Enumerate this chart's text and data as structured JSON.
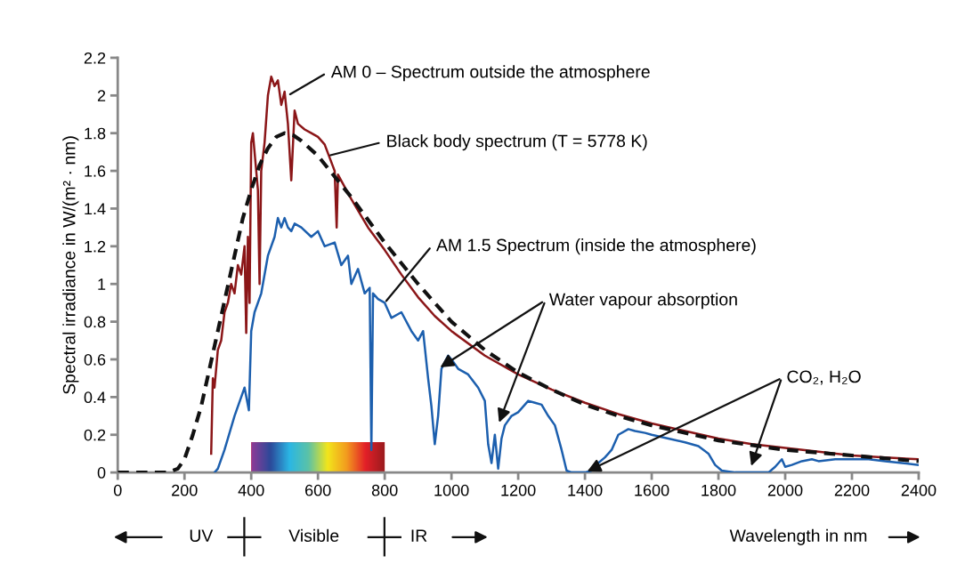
{
  "chart_data": {
    "type": "line",
    "xlabel": "Wavelength in nm",
    "ylabel": "Spectral irradiance in W/(m² · nm)",
    "xlim": [
      0,
      2400
    ],
    "ylim": [
      0,
      2.2
    ],
    "xticks": [
      0,
      200,
      400,
      600,
      800,
      1000,
      1200,
      1400,
      1600,
      1800,
      2000,
      2200,
      2400
    ],
    "yticks": [
      0,
      0.2,
      0.4,
      0.6,
      0.8,
      1,
      1.2,
      1.4,
      1.6,
      1.8,
      2,
      2.2
    ],
    "grid": false,
    "legend": false,
    "series": [
      {
        "color": "#1c5fae",
        "line_style": "solid",
        "x": [
          290,
          300,
          320,
          350,
          370,
          380,
          393,
          400,
          410,
          430,
          450,
          470,
          480,
          490,
          500,
          510,
          520,
          530,
          550,
          580,
          600,
          620,
          650,
          670,
          690,
          700,
          720,
          740,
          755,
          760,
          765,
          780,
          800,
          820,
          850,
          880,
          900,
          915,
          930,
          940,
          950,
          960,
          970,
          990,
          1000,
          1020,
          1050,
          1080,
          1100,
          1110,
          1120,
          1130,
          1140,
          1150,
          1160,
          1180,
          1200,
          1230,
          1250,
          1270,
          1290,
          1310,
          1330,
          1345,
          1360,
          1400,
          1420,
          1440,
          1460,
          1480,
          1500,
          1530,
          1550,
          1580,
          1600,
          1650,
          1700,
          1740,
          1770,
          1790,
          1810,
          1850,
          1900,
          1950,
          1970,
          1990,
          2000,
          2020,
          2050,
          2080,
          2100,
          2150,
          2200,
          2250,
          2300,
          2350,
          2400
        ],
        "values": [
          0,
          0.02,
          0.12,
          0.3,
          0.4,
          0.45,
          0.33,
          0.75,
          0.85,
          0.95,
          1.15,
          1.25,
          1.35,
          1.3,
          1.35,
          1.3,
          1.28,
          1.32,
          1.3,
          1.25,
          1.28,
          1.2,
          1.22,
          1.1,
          1.15,
          1.0,
          1.08,
          0.95,
          0.98,
          0.12,
          0.95,
          0.92,
          0.9,
          0.82,
          0.85,
          0.75,
          0.7,
          0.75,
          0.5,
          0.35,
          0.15,
          0.3,
          0.55,
          0.62,
          0.6,
          0.55,
          0.52,
          0.45,
          0.38,
          0.15,
          0.05,
          0.2,
          0.02,
          0.18,
          0.25,
          0.3,
          0.32,
          0.38,
          0.37,
          0.36,
          0.3,
          0.25,
          0.12,
          0.01,
          0,
          0,
          0.01,
          0.05,
          0.08,
          0.12,
          0.2,
          0.23,
          0.22,
          0.21,
          0.2,
          0.18,
          0.16,
          0.14,
          0.1,
          0.04,
          0.01,
          0,
          0,
          0,
          0.03,
          0.07,
          0.03,
          0.04,
          0.06,
          0.07,
          0.06,
          0.07,
          0.07,
          0.07,
          0.06,
          0.05,
          0.04
        ]
      },
      {
        "color": "#8b1618",
        "line_style": "solid",
        "x": [
          280,
          285,
          290,
          300,
          310,
          320,
          330,
          340,
          350,
          360,
          370,
          380,
          385,
          390,
          395,
          400,
          405,
          410,
          420,
          425,
          430,
          440,
          450,
          460,
          470,
          480,
          490,
          500,
          510,
          520,
          530,
          540,
          560,
          580,
          600,
          620,
          650,
          656,
          660,
          700,
          750,
          800,
          850,
          900,
          950,
          1000,
          1100,
          1200,
          1300,
          1400,
          1500,
          1600,
          1700,
          1800,
          1900,
          2000,
          2100,
          2200,
          2300,
          2400
        ],
        "values": [
          0.1,
          0.5,
          0.45,
          0.65,
          0.7,
          0.85,
          0.9,
          1.0,
          0.95,
          1.1,
          1.05,
          1.2,
          0.74,
          1.25,
          0.9,
          1.75,
          1.8,
          1.7,
          1.5,
          1.0,
          1.6,
          1.75,
          2.0,
          2.1,
          2.05,
          2.08,
          1.95,
          2.02,
          1.85,
          1.55,
          1.92,
          1.85,
          1.82,
          1.8,
          1.78,
          1.74,
          1.6,
          1.3,
          1.58,
          1.45,
          1.3,
          1.18,
          1.05,
          0.93,
          0.83,
          0.75,
          0.62,
          0.52,
          0.44,
          0.37,
          0.31,
          0.26,
          0.22,
          0.18,
          0.15,
          0.13,
          0.11,
          0.09,
          0.08,
          0.07
        ]
      },
      {
        "color": "#111111",
        "line_style": "dashed",
        "x": [
          0,
          100,
          150,
          180,
          200,
          225,
          250,
          275,
          300,
          325,
          350,
          375,
          400,
          425,
          450,
          475,
          500,
          525,
          550,
          600,
          650,
          700,
          800,
          900,
          1000,
          1100,
          1200,
          1300,
          1400,
          1500,
          1600,
          1800,
          2000,
          2200,
          2400
        ],
        "values": [
          0,
          0,
          0,
          0.02,
          0.07,
          0.2,
          0.35,
          0.55,
          0.75,
          0.95,
          1.15,
          1.35,
          1.5,
          1.63,
          1.72,
          1.78,
          1.8,
          1.79,
          1.76,
          1.68,
          1.57,
          1.46,
          1.22,
          1.0,
          0.8,
          0.65,
          0.53,
          0.44,
          0.36,
          0.3,
          0.25,
          0.17,
          0.12,
          0.09,
          0.06
        ]
      }
    ],
    "bands": [
      {
        "axis": "x",
        "from": 400,
        "to": 800
      }
    ],
    "annotations": [
      {
        "text": "AM 0 – Spectrum outside the atmosphere",
        "x": 510,
        "y": 2.0
      },
      {
        "text": "Black body spectrum (T = 5778 K)",
        "x": 630,
        "y": 1.68
      },
      {
        "text": "AM 1.5 Spectrum (inside the atmosphere)",
        "x": 800,
        "y": 0.9
      },
      {
        "text": "Water vapour absorption",
        "x": 960,
        "y": 0.55
      },
      {
        "text": "CO₂, H₂O",
        "x": 1400,
        "y": 0
      },
      "UV",
      "Visible",
      "IR"
    ]
  }
}
